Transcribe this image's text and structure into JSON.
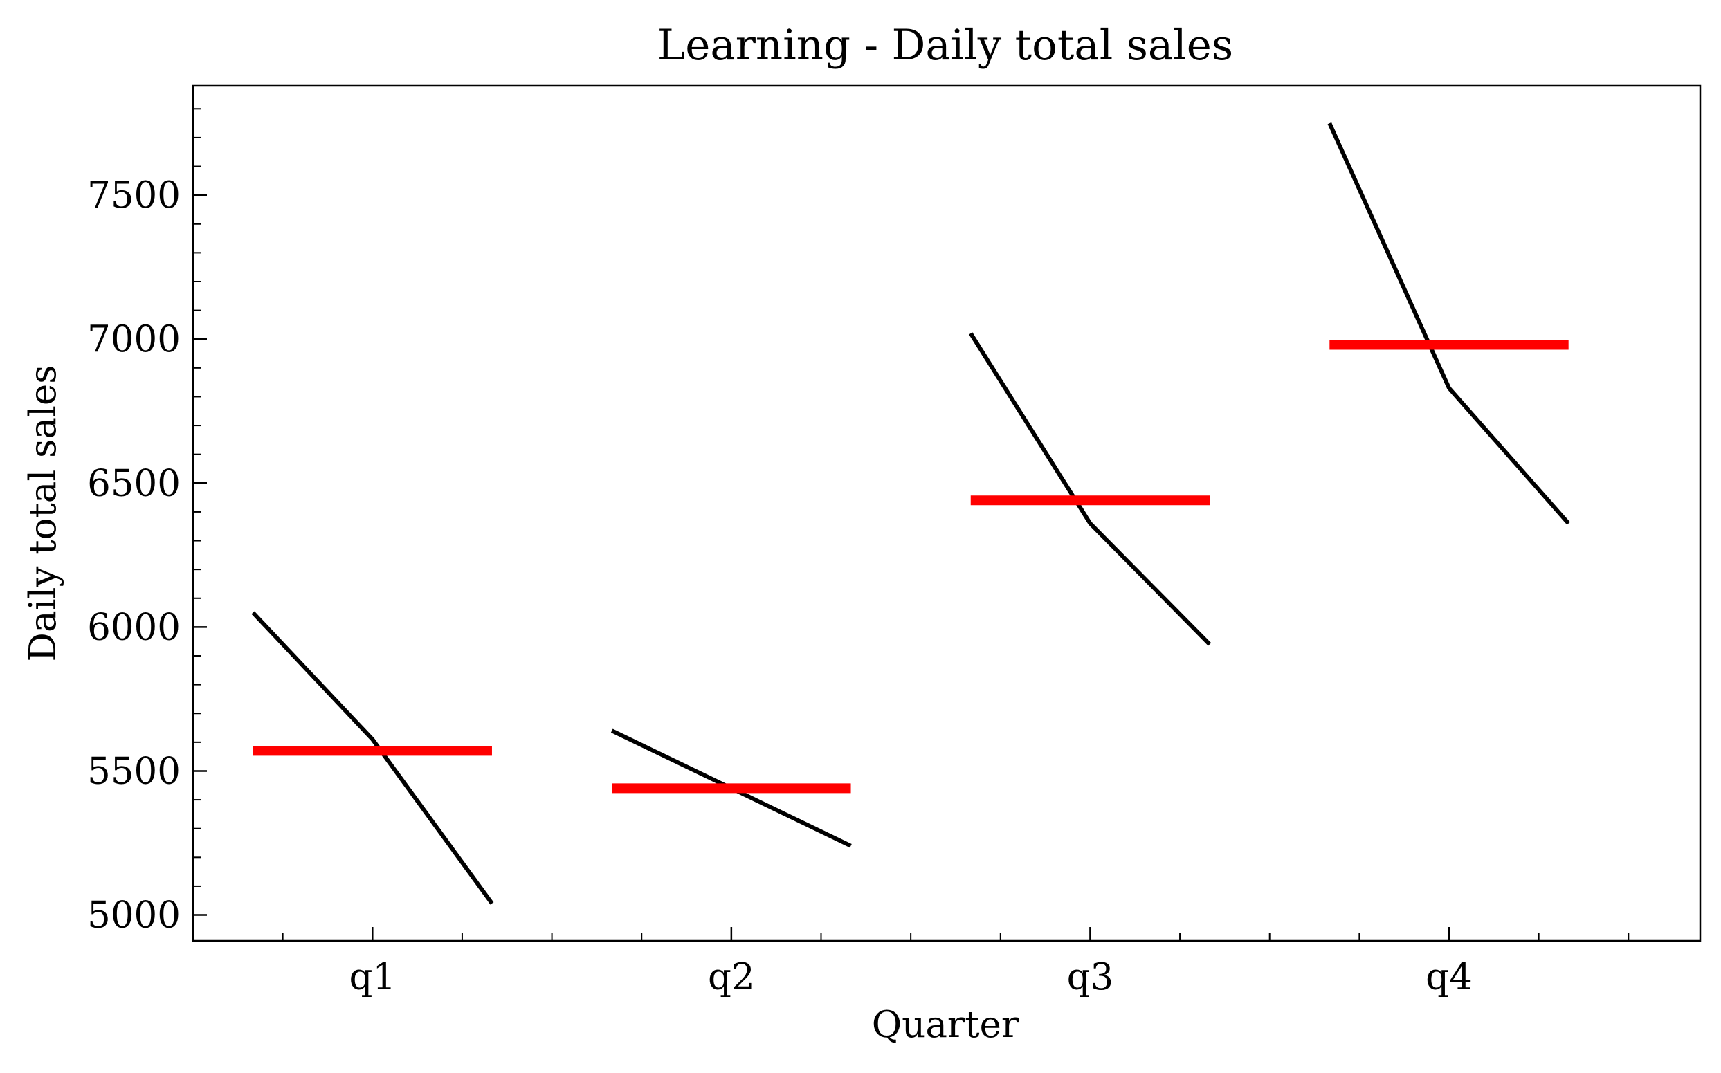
{
  "chart_data": {
    "type": "line",
    "title": "Learning - Daily total sales",
    "xlabel": "Quarter",
    "ylabel": "Daily total sales",
    "categories": [
      "q1",
      "q2",
      "q3",
      "q4"
    ],
    "ylim": [
      4910,
      7880
    ],
    "yticks": [
      5000,
      5500,
      6000,
      6500,
      7000,
      7500
    ],
    "ytick_labels": [
      "5000",
      "5500",
      "6000",
      "6500",
      "7000",
      "7500"
    ],
    "grid": false,
    "series": [
      {
        "kind": "sub-series",
        "color": "#000000",
        "groups": [
          {
            "quarter": "q1",
            "values": [
              6050,
              5610,
              5040
            ]
          },
          {
            "quarter": "q2",
            "values": [
              5640,
              5440,
              5240
            ]
          },
          {
            "quarter": "q3",
            "values": [
              7020,
              6360,
              5940
            ]
          },
          {
            "quarter": "q4",
            "values": [
              7750,
              6830,
              6360
            ]
          }
        ]
      },
      {
        "kind": "mean",
        "color": "#ff0000",
        "values": [
          5570,
          5440,
          6440,
          6980
        ]
      }
    ]
  }
}
